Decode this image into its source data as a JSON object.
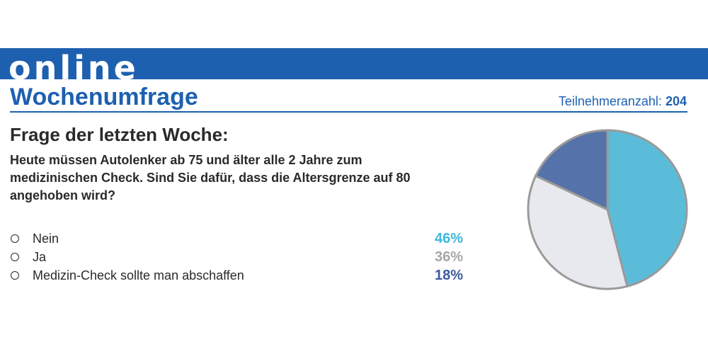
{
  "header": {
    "banner_text": "online",
    "title": "Wochenumfrage",
    "participants_label": "Teilnehmeranzahl:",
    "participants_count": "204"
  },
  "question": {
    "heading": "Frage der letzten Woche:",
    "text": "Heute müssen Autolenker ab 75 und älter alle 2 Jahre zum medizinischen Check. Sind Sie dafür, dass die Altersgrenze auf 80 angehoben wird?"
  },
  "answers": [
    {
      "label": "Nein",
      "percent": "46%",
      "color": "#3cb8e0"
    },
    {
      "label": "Ja",
      "percent": "36%",
      "color": "#a6a6a6"
    },
    {
      "label": "Medizin-Check sollte man abschaffen",
      "percent": "18%",
      "color": "#3d5a9e"
    }
  ],
  "chart_data": {
    "type": "pie",
    "categories": [
      "Nein",
      "Ja",
      "Medizin-Check sollte man abschaffen"
    ],
    "values": [
      46,
      36,
      18
    ],
    "slice_colors": [
      "#5bbcd9",
      "#e8e9ef",
      "#5572aa"
    ],
    "outline_color": "#9a9a9a"
  }
}
